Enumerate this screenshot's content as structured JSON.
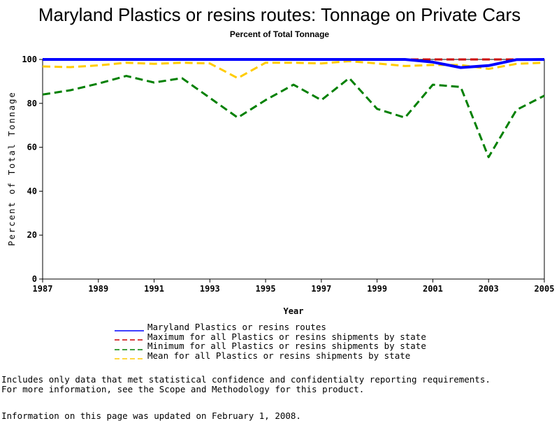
{
  "header": {
    "title": "Maryland Plastics or resins routes: Tonnage on Private Cars",
    "subtitle": "Percent of Total Tonnage"
  },
  "chart_data": {
    "type": "line",
    "xlabel": "Year",
    "ylabel": "Percent of Total Tonnage",
    "xlim": [
      1987,
      2005
    ],
    "ylim": [
      0,
      100
    ],
    "x_ticks": [
      "1987",
      "1989",
      "1991",
      "1993",
      "1995",
      "1997",
      "1999",
      "2001",
      "2003",
      "2005"
    ],
    "y_ticks": [
      "0",
      "20",
      "40",
      "60",
      "80",
      "100"
    ],
    "grid": false,
    "legend_position": "bottom",
    "x": [
      1987,
      1988,
      1989,
      1990,
      1991,
      1992,
      1993,
      1994,
      1995,
      1996,
      1997,
      1998,
      1999,
      2000,
      2001,
      2002,
      2003,
      2004,
      2005
    ],
    "series": [
      {
        "name": "Maryland Plastics or resins routes",
        "color": "#0000ff",
        "style": "solid",
        "values": [
          100,
          100,
          100,
          100,
          100,
          100,
          100,
          100,
          100,
          100,
          100,
          100,
          100,
          100,
          98.8,
          96.3,
          97.2,
          99.9,
          100
        ]
      },
      {
        "name": "Maximum for all Plastics or resins shipments by state",
        "color": "#cc0000",
        "style": "dashed",
        "values": [
          100,
          100,
          100,
          100,
          100,
          100,
          100,
          100,
          100,
          100,
          100,
          100,
          100,
          100,
          100,
          100,
          100,
          100,
          100
        ]
      },
      {
        "name": "Minimum for all Plastics or resins shipments by state",
        "color": "#008000",
        "style": "dashed",
        "values": [
          84,
          86,
          89,
          92.5,
          89.5,
          91.5,
          82.5,
          73.5,
          81.5,
          88.5,
          81.5,
          91.5,
          77.5,
          73.5,
          88.5,
          87.5,
          55.5,
          77,
          83.5
        ]
      },
      {
        "name": "Mean for all Plastics or resins shipments by state",
        "color": "#ffcc00",
        "style": "dashed",
        "values": [
          96.8,
          96.5,
          97.3,
          98.5,
          98,
          98.5,
          98.2,
          91.5,
          98.5,
          98.5,
          98.2,
          99.2,
          98.2,
          97,
          97.5,
          97.5,
          95.7,
          98,
          98.5
        ]
      }
    ]
  },
  "notes": {
    "line1": "Includes only data that met statistical confidence and confidentialty reporting requirements.",
    "line2": "For more information, see the Scope and Methodology for this product.",
    "updated": "Information on this page was updated on February 1, 2008."
  }
}
